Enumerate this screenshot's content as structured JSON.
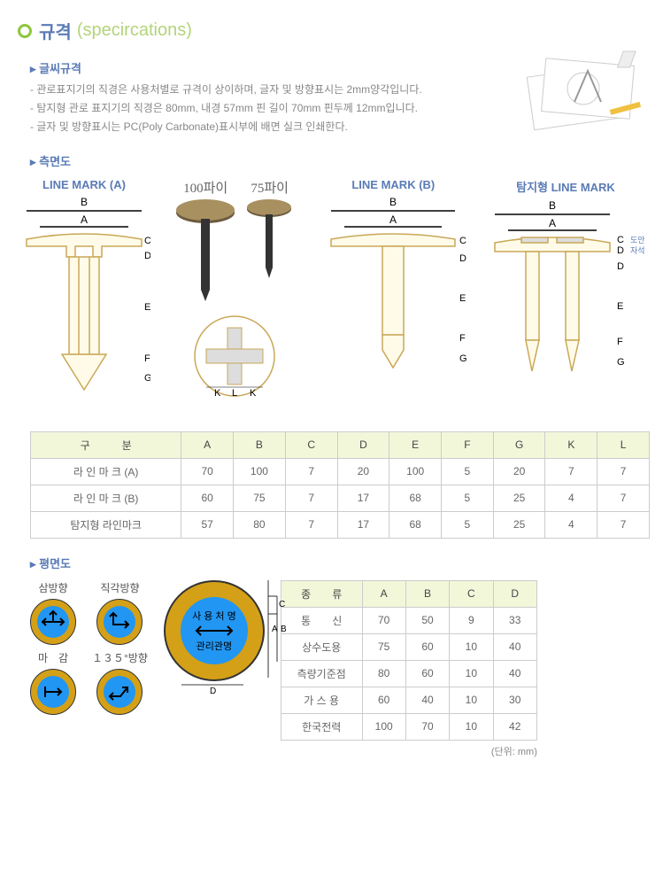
{
  "title": {
    "main": "규격",
    "sub": "(specircations)"
  },
  "text_spec": {
    "heading": "▸ 글씨규격",
    "lines": [
      "- 관로표지기의 직경은 사용처별로 규격이 상이하며, 글자 및 방향표시는 2mm양각입니다.",
      "- 탐지형 관로 표지기의 직경은 80mm, 내경 57mm 핀 길이 70mm 핀두께 12mm입니다.",
      "- 글자 및 방향표시는 PC(Poly Carbonate)표시부에 배면 실크 인쇄한다."
    ]
  },
  "side_view": {
    "heading": "▸ 측면도",
    "labels": {
      "a": "LINE MARK (A)",
      "b": "LINE MARK (B)",
      "c": "탐지형 LINE MARK",
      "p100": "100파이",
      "p75": "75파이",
      "note1": "도안부",
      "note2": "자석"
    }
  },
  "table1": {
    "header": [
      "구　　　분",
      "A",
      "B",
      "C",
      "D",
      "E",
      "F",
      "G",
      "K",
      "L"
    ],
    "rows": [
      [
        "라 인 마 크 (A)",
        "70",
        "100",
        "7",
        "20",
        "100",
        "5",
        "20",
        "7",
        "7"
      ],
      [
        "라 인 마 크 (B)",
        "60",
        "75",
        "7",
        "17",
        "68",
        "5",
        "25",
        "4",
        "7"
      ],
      [
        "탐지형 라인마크",
        "57",
        "80",
        "7",
        "17",
        "68",
        "5",
        "25",
        "4",
        "7"
      ]
    ]
  },
  "plan_view": {
    "heading": "▸ 평면도"
  },
  "directions": {
    "a": "삼방향",
    "b": "직각방향",
    "c": "마　감",
    "d": "１３５°방향"
  },
  "big_coin": {
    "top": "사 용 처 명",
    "bottom": "관리관명"
  },
  "table2": {
    "header": [
      "종　　류",
      "A",
      "B",
      "C",
      "D"
    ],
    "rows": [
      [
        "통　　신",
        "70",
        "50",
        "9",
        "33"
      ],
      [
        "상수도용",
        "75",
        "60",
        "10",
        "40"
      ],
      [
        "측량기준점",
        "80",
        "60",
        "10",
        "40"
      ],
      [
        "가  스  용",
        "60",
        "40",
        "10",
        "30"
      ],
      [
        "한국전력",
        "100",
        "70",
        "10",
        "42"
      ]
    ]
  },
  "unit": "(단위: mm)",
  "colors": {
    "heading_blue": "#5a7bb5",
    "green": "#8dc63f",
    "table_head": "#f3f7da",
    "coin_outer": "#d4a017",
    "coin_inner": "#2196f3",
    "stroke": "#333333"
  }
}
